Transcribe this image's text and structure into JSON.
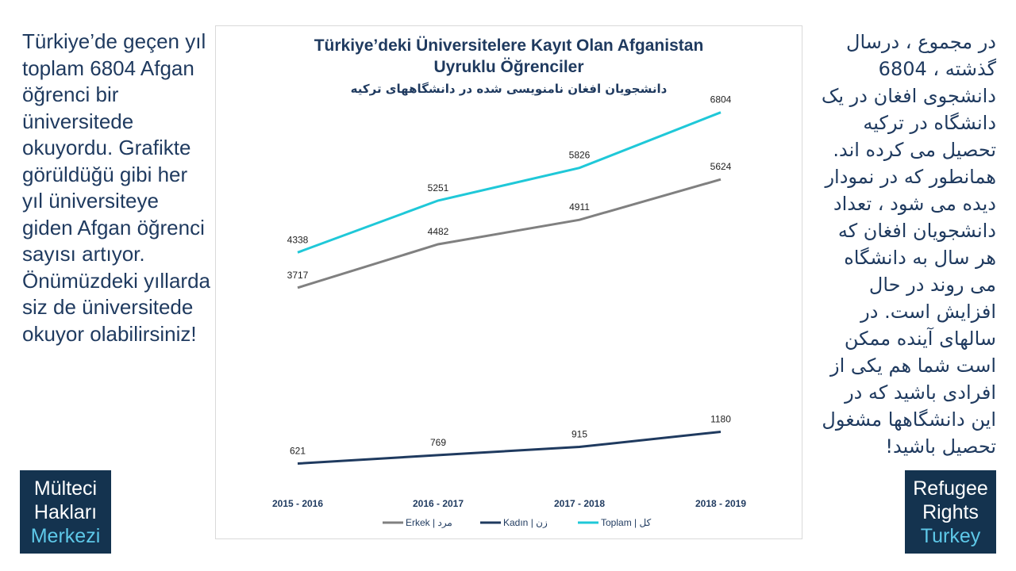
{
  "left_text": "Türkiye’de geçen yıl toplam 6804 Afgan öğrenci bir üniversitede okuyordu. Grafikte görüldüğü gibi her yıl üniversiteye giden Afgan öğrenci sayısı artıyor. Önümüzdeki yıllarda siz de üniversitede okuyor olabilirsiniz!",
  "right_text": "در مجموع ، درسال گذشته ، 6804 دانشجوی افغان در یک دانشگاه در ترکیه تحصیل می کرده اند. همانطور که در نمودار دیده می شود ، تعداد دانشجویان افغان که هر سال به دانشگاه می روند در حال افزایش است. در سالهای آینده ممکن است شما هم یکی از افرادی باشید که در این دانشگاهها مشغول تحصیل باشید!",
  "logo_left": {
    "line1": "Mülteci",
    "line2": "Hakları",
    "line3": "Merkezi"
  },
  "logo_right": {
    "line1": "Refugee",
    "line2": "Rights",
    "line3": "Turkey"
  },
  "colors": {
    "erkek": "#808080",
    "kadin": "#1f3a5f",
    "toplam": "#1fc8d8",
    "text": "#1f3a5f"
  },
  "chart_data": {
    "type": "line",
    "title": "Türkiye’deki Üniversitelere Kayıt Olan Afganistan Uyruklu Öğrenciler",
    "subtitle": "دانشجویان افغان نامنویسی شده در دانشگاههای ترکیه",
    "categories": [
      "2015 - 2016",
      "2016 - 2017",
      "2017 - 2018",
      "2018 - 2019"
    ],
    "series": [
      {
        "name": "Erkek | مرد",
        "key": "erkek",
        "values": [
          3717,
          4482,
          4911,
          5624
        ]
      },
      {
        "name": "Kadın | زن",
        "key": "kadin",
        "values": [
          621,
          769,
          915,
          1180
        ]
      },
      {
        "name": "Toplam | کل",
        "key": "toplam",
        "values": [
          4338,
          5251,
          5826,
          6804
        ]
      }
    ],
    "ylim": [
      0,
      8000
    ],
    "grid": false,
    "legend": "bottom"
  }
}
